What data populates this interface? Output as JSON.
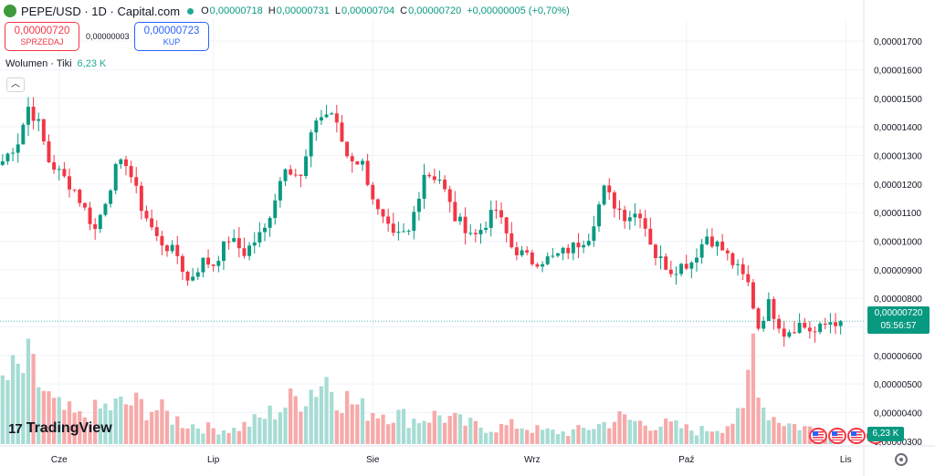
{
  "header": {
    "symbol": "PEPE/USD · 1D · Capital.com",
    "open_label": "O",
    "open": "0,00000718",
    "high_label": "H",
    "high": "0,00000731",
    "low_label": "L",
    "low": "0,00000704",
    "close_label": "C",
    "close": "0,00000720",
    "change": "+0,00000005 (+0,70%)"
  },
  "trade": {
    "sell_price": "0,00000720",
    "sell_label": "SPRZEDAJ",
    "spread": "0,00000003",
    "buy_price": "0,00000723",
    "buy_label": "KUP"
  },
  "volume_legend": {
    "label": "Wolumen · Tiki",
    "value": "6,23 K"
  },
  "brand": {
    "name": "TradingView",
    "mark": "17"
  },
  "badges": {
    "last_price": "0,00000720",
    "countdown": "05:56:57",
    "volume": "6,23 K"
  },
  "colors": {
    "up": "#089981",
    "down": "#f23645",
    "up_vol": "#a6dcd4",
    "down_vol": "#f7a9a9"
  },
  "chart_data": {
    "type": "candlestick",
    "y_axis": {
      "min": 2.9e-06,
      "max": 1.78e-05,
      "tick_values": [
        3e-06,
        4e-06,
        5e-06,
        6e-06,
        7e-06,
        8e-06,
        9e-06,
        1e-05,
        1.1e-05,
        1.2e-05,
        1.3e-05,
        1.4e-05,
        1.5e-05,
        1.6e-05,
        1.7e-05
      ],
      "tick_labels": [
        "0,00000300",
        "0,00000400",
        "0,00000500",
        "0,00000600",
        "0,00000700",
        "0,00000800",
        "0,00000900",
        "0,00001000",
        "0,00001100",
        "0,00001200",
        "0,00001300",
        "0,00001400",
        "0,00001500",
        "0,00001600",
        "0,00001700"
      ],
      "position": "right"
    },
    "x_axis": {
      "labels": [
        {
          "label": "Cze",
          "bar": 11
        },
        {
          "label": "Lip",
          "bar": 41
        },
        {
          "label": "Sie",
          "bar": 72
        },
        {
          "label": "Wrz",
          "bar": 103
        },
        {
          "label": "Paź",
          "bar": 133
        },
        {
          "label": "Lis",
          "bar": 164
        }
      ]
    },
    "bar_slots": 168,
    "grid": true,
    "volume_panel_max": 8000,
    "waypoints": [
      [
        0,
        1.28e-05
      ],
      [
        3,
        1.35e-05
      ],
      [
        5,
        1.47e-05
      ],
      [
        7,
        1.41e-05
      ],
      [
        9,
        1.28e-05
      ],
      [
        11,
        1.24e-05
      ],
      [
        14,
        1.18e-05
      ],
      [
        18,
        1.04e-05
      ],
      [
        22,
        1.25e-05
      ],
      [
        24,
        1.28e-05
      ],
      [
        27,
        1.12e-05
      ],
      [
        30,
        1.01e-05
      ],
      [
        34,
        9.5e-06
      ],
      [
        36,
        8.6e-06
      ],
      [
        39,
        9.3e-06
      ],
      [
        41,
        9.2e-06
      ],
      [
        44,
        1.01e-05
      ],
      [
        47,
        9.6e-06
      ],
      [
        51,
        1.04e-05
      ],
      [
        55,
        1.27e-05
      ],
      [
        58,
        1.22e-05
      ],
      [
        61,
        1.43e-05
      ],
      [
        64,
        1.45e-05
      ],
      [
        67,
        1.3e-05
      ],
      [
        70,
        1.27e-05
      ],
      [
        73,
        1.1e-05
      ],
      [
        76,
        1.01e-05
      ],
      [
        79,
        1.03e-05
      ],
      [
        82,
        1.24e-05
      ],
      [
        85,
        1.22e-05
      ],
      [
        88,
        1.08e-05
      ],
      [
        92,
        1.02e-05
      ],
      [
        96,
        1.11e-05
      ],
      [
        99,
        9.8e-06
      ],
      [
        103,
        9.3e-06
      ],
      [
        107,
        9.4e-06
      ],
      [
        111,
        9.8e-06
      ],
      [
        114,
        1.02e-05
      ],
      [
        117,
        1.18e-05
      ],
      [
        119,
        1.13e-05
      ],
      [
        121,
        1.09e-05
      ],
      [
        124,
        1.1e-05
      ],
      [
        127,
        9.5e-06
      ],
      [
        130,
        9e-06
      ],
      [
        134,
        9.3e-06
      ],
      [
        137,
        1.02e-05
      ],
      [
        140,
        9.7e-06
      ],
      [
        143,
        9e-06
      ],
      [
        145,
        8.5e-06
      ],
      [
        147,
        7e-06
      ],
      [
        149,
        7.8e-06
      ],
      [
        152,
        6.8e-06
      ],
      [
        155,
        7.1e-06
      ],
      [
        158,
        6.8e-06
      ],
      [
        161,
        7.2e-06
      ],
      [
        163,
        7.2e-06
      ]
    ],
    "volume_waypoints": [
      [
        0,
        4200
      ],
      [
        5,
        5300
      ],
      [
        10,
        2600
      ],
      [
        15,
        1800
      ],
      [
        20,
        2500
      ],
      [
        25,
        2800
      ],
      [
        30,
        2400
      ],
      [
        35,
        1500
      ],
      [
        40,
        1100
      ],
      [
        45,
        1000
      ],
      [
        50,
        1700
      ],
      [
        55,
        2700
      ],
      [
        60,
        3800
      ],
      [
        63,
        4600
      ],
      [
        66,
        3300
      ],
      [
        70,
        2400
      ],
      [
        75,
        2200
      ],
      [
        80,
        1700
      ],
      [
        85,
        2000
      ],
      [
        90,
        1400
      ],
      [
        95,
        1100
      ],
      [
        100,
        1300
      ],
      [
        105,
        900
      ],
      [
        110,
        800
      ],
      [
        115,
        1200
      ],
      [
        120,
        1800
      ],
      [
        125,
        1400
      ],
      [
        130,
        1300
      ],
      [
        135,
        900
      ],
      [
        140,
        1200
      ],
      [
        144,
        2000
      ],
      [
        146,
        7400
      ],
      [
        148,
        2600
      ],
      [
        150,
        1900
      ],
      [
        153,
        1400
      ],
      [
        158,
        1000
      ],
      [
        163,
        600
      ]
    ]
  }
}
